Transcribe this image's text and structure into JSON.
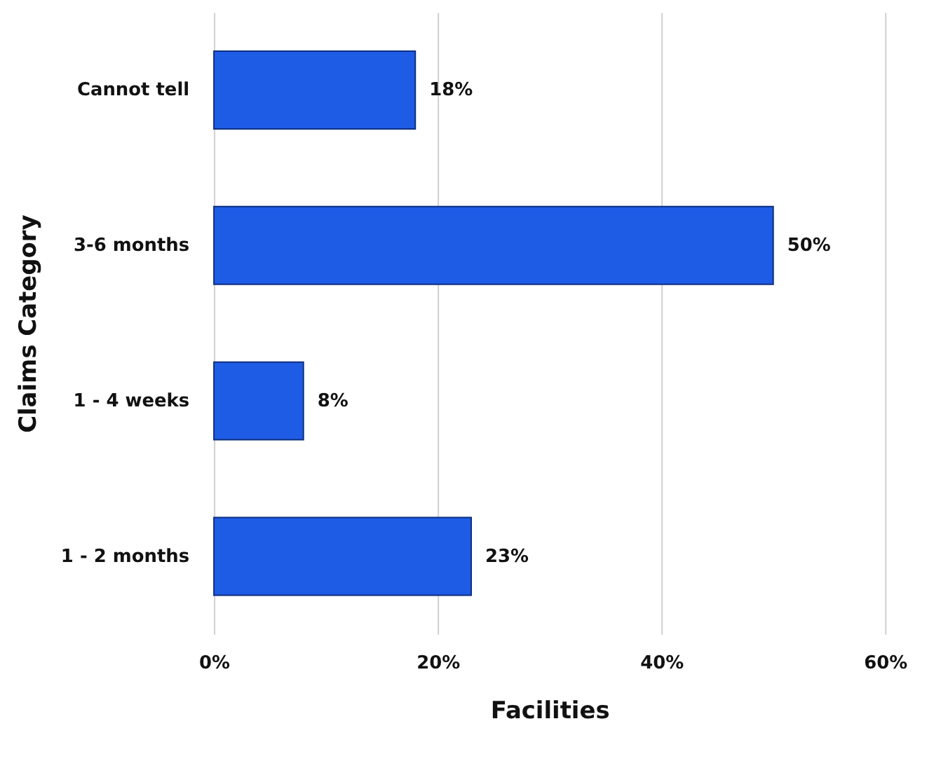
{
  "chart_data": {
    "type": "bar",
    "orientation": "horizontal",
    "xlabel": "Facilities",
    "ylabel": "Claims Category",
    "categories": [
      "Cannot tell",
      "3-6 months",
      "1 - 4 weeks",
      "1 - 2 months"
    ],
    "values": [
      18,
      50,
      8,
      23
    ],
    "value_labels": [
      "18%",
      "50%",
      "8%",
      "23%"
    ],
    "color": "#1f5ce6",
    "xlim": [
      0,
      60
    ],
    "xticks": [
      {
        "value": 0,
        "label": "0%"
      },
      {
        "value": 20,
        "label": "20%"
      },
      {
        "value": 40,
        "label": "40%"
      },
      {
        "value": 60,
        "label": "60%"
      }
    ],
    "grid": "x"
  }
}
